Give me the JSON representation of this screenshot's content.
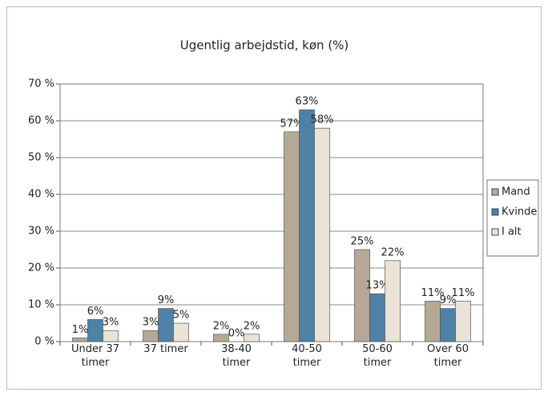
{
  "chart_data": {
    "type": "bar",
    "title": "Ugentlig arbejdstid, køn (%)",
    "categories": [
      "Under 37 timer",
      "37 timer",
      "38-40 timer",
      "40-50 timer",
      "50-60 timer",
      "Over 60 timer"
    ],
    "series": [
      {
        "name": "Mand",
        "color": "#b5a995",
        "values": [
          1,
          3,
          2,
          57,
          25,
          11
        ],
        "value_labels": [
          "1%",
          "3%",
          "2%",
          "57%",
          "25%",
          "11%"
        ]
      },
      {
        "name": "Kvinde",
        "color": "#4f81a6",
        "values": [
          6,
          9,
          0,
          63,
          13,
          9
        ],
        "value_labels": [
          "6%",
          "9%",
          "0%",
          "63%",
          "13%",
          "9%"
        ]
      },
      {
        "name": "I alt",
        "color": "#ebe3d6",
        "values": [
          3,
          5,
          2,
          58,
          22,
          11
        ],
        "value_labels": [
          "3%",
          "5%",
          "2%",
          "58%",
          "22%",
          "11%"
        ]
      }
    ],
    "ylim": [
      0,
      70
    ],
    "yticks": [
      {
        "value": 0,
        "label": "0 %"
      },
      {
        "value": 10,
        "label": "10 %"
      },
      {
        "value": 20,
        "label": "20 %"
      },
      {
        "value": 30,
        "label": "30 %"
      },
      {
        "value": 40,
        "label": "40 %"
      },
      {
        "value": 50,
        "label": "50 %"
      },
      {
        "value": 60,
        "label": "60 %"
      },
      {
        "value": 70,
        "label": "70 %"
      }
    ],
    "grid": true,
    "legend": "right"
  }
}
